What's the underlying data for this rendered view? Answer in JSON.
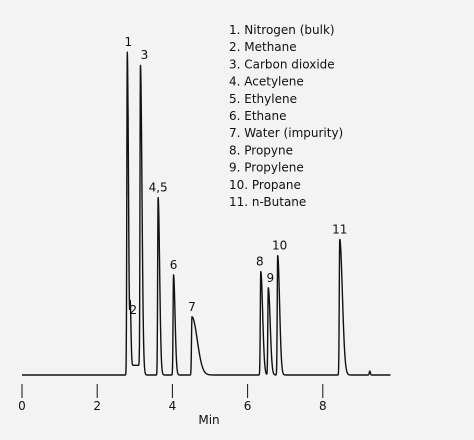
{
  "chart_data": {
    "type": "line",
    "xlabel": "Min",
    "xlim": [
      0,
      9.8
    ],
    "x_ticks": [
      0,
      2,
      4,
      6,
      8
    ],
    "baseline_y": 0,
    "legend_placement": "top-right",
    "legend": [
      "1. Nitrogen (bulk)",
      "2. Methane",
      "3. Carbon dioxide",
      "4. Acetylene",
      "5. Ethylene",
      "6. Ethane",
      "7. Water (impurity)",
      "8. Propyne",
      "9. Propylene",
      "10. Propane",
      "11. n-Butane"
    ],
    "peaks": [
      {
        "label": "1",
        "x": 2.8,
        "height": 100
      },
      {
        "label": "2",
        "x": 2.88,
        "height": 17
      },
      {
        "label": "3",
        "x": 3.15,
        "height": 96
      },
      {
        "label": "4,5",
        "x": 3.62,
        "height": 55
      },
      {
        "label": "6",
        "x": 4.03,
        "height": 31
      },
      {
        "label": "7",
        "x": 4.52,
        "height": 18
      },
      {
        "label": "8",
        "x": 6.35,
        "height": 32
      },
      {
        "label": "9",
        "x": 6.55,
        "height": 27
      },
      {
        "label": "10",
        "x": 6.8,
        "height": 37
      },
      {
        "label": "11",
        "x": 8.45,
        "height": 42
      }
    ]
  }
}
